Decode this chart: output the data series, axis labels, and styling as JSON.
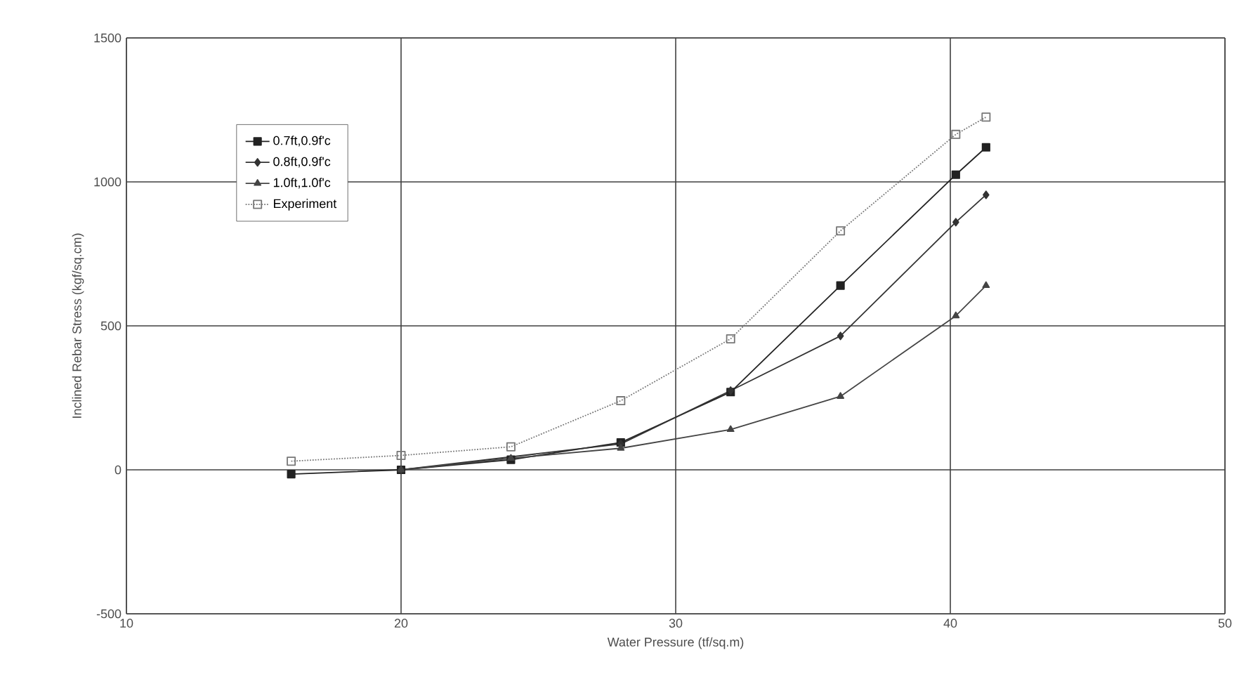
{
  "chart_data": {
    "type": "line",
    "xlabel": "Water Pressure (tf/sq.m)",
    "ylabel": "Inclined Rebar Stress (kgf/sq.cm)",
    "xlim": [
      10,
      50
    ],
    "ylim": [
      -500,
      1500
    ],
    "xticks": [
      10,
      20,
      30,
      40,
      50
    ],
    "yticks": [
      -500,
      0,
      500,
      1000,
      1500
    ],
    "grid": true,
    "legend": "top left",
    "series": [
      {
        "name": "0.7ft,0.9f'c",
        "color": "#222222",
        "marker": "square",
        "line_style": "solid",
        "x": [
          16,
          20,
          24,
          28,
          32,
          36,
          40.2,
          41.3
        ],
        "values": [
          -15,
          0,
          35,
          95,
          270,
          640,
          1025,
          1120
        ]
      },
      {
        "name": "0.8ft,0.9f'c",
        "color": "#333333",
        "marker": "diamond",
        "line_style": "solid",
        "x": [
          20,
          24,
          28,
          32,
          36,
          40.2,
          41.3
        ],
        "values": [
          0,
          null,
          90,
          275,
          465,
          860,
          955
        ]
      },
      {
        "name": "1.0ft,1.0f'c",
        "color": "#444444",
        "marker": "triangle",
        "line_style": "solid",
        "x": [
          20,
          24,
          28,
          32,
          36,
          40.2,
          41.3
        ],
        "values": [
          0,
          40,
          75,
          140,
          255,
          535,
          640
        ]
      },
      {
        "name": "Experiment",
        "color": "#777777",
        "marker": "square",
        "line_style": "dotted",
        "x": [
          16,
          20,
          24,
          28,
          32,
          36,
          40.2,
          41.3
        ],
        "values": [
          30,
          50,
          80,
          240,
          455,
          830,
          1165,
          1225
        ]
      }
    ]
  }
}
